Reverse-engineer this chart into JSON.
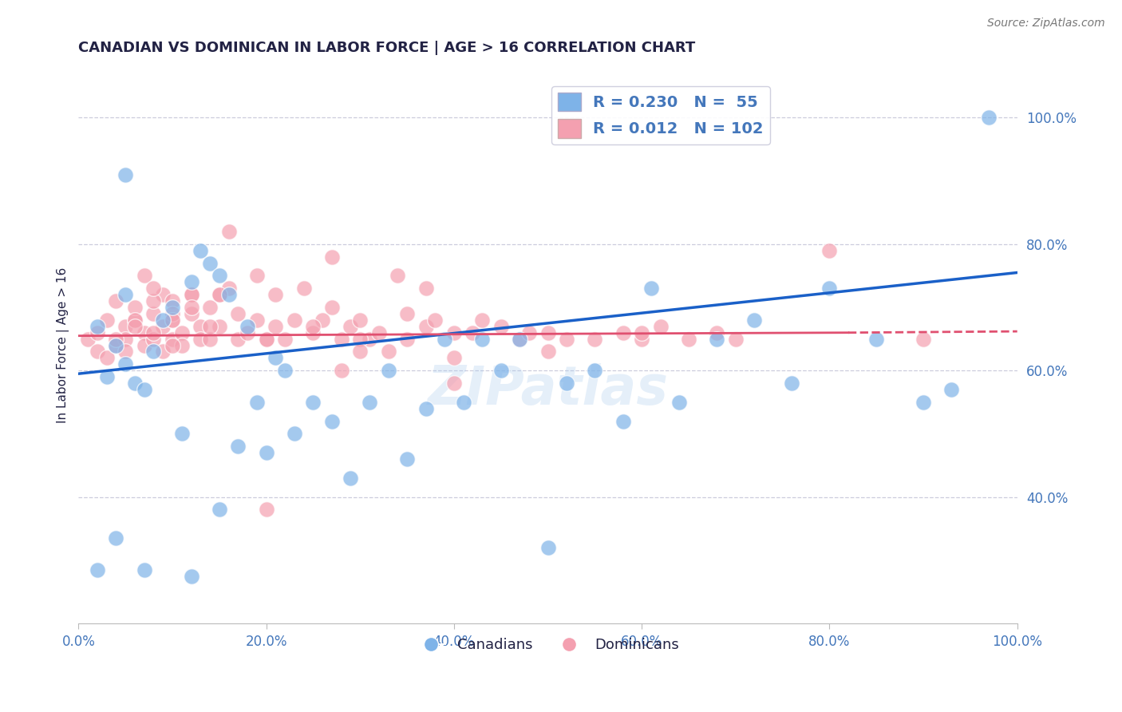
{
  "title": "CANADIAN VS DOMINICAN IN LABOR FORCE | AGE > 16 CORRELATION CHART",
  "source_text": "Source: ZipAtlas.com",
  "ylabel": "In Labor Force | Age > 16",
  "blue_color": "#7EB3E8",
  "pink_color": "#F4A0B0",
  "blue_line_color": "#1A60C8",
  "pink_line_color": "#E05070",
  "title_color": "#222244",
  "axis_label_color": "#4477BB",
  "grid_color": "#CCCCDD",
  "R_blue": 0.23,
  "N_blue": 55,
  "R_pink": 0.012,
  "N_pink": 102,
  "watermark": "ZIPatlas",
  "xlim": [
    0.0,
    1.0
  ],
  "ylim": [
    0.2,
    1.08
  ],
  "blue_line_x0": 0.0,
  "blue_line_y0": 0.595,
  "blue_line_x1": 1.0,
  "blue_line_y1": 0.755,
  "pink_line_x0": 0.0,
  "pink_line_y0": 0.655,
  "pink_line_x1": 0.82,
  "pink_line_y1": 0.66,
  "pink_line_dash_x0": 0.82,
  "pink_line_dash_y0": 0.66,
  "pink_line_dash_x1": 1.0,
  "pink_line_dash_y1": 0.662,
  "canadians_x": [
    0.97,
    0.02,
    0.04,
    0.07,
    0.12,
    0.15,
    0.02,
    0.03,
    0.04,
    0.05,
    0.05,
    0.06,
    0.07,
    0.08,
    0.09,
    0.1,
    0.11,
    0.12,
    0.13,
    0.14,
    0.15,
    0.16,
    0.17,
    0.18,
    0.19,
    0.2,
    0.21,
    0.22,
    0.23,
    0.25,
    0.27,
    0.29,
    0.31,
    0.33,
    0.35,
    0.37,
    0.39,
    0.41,
    0.43,
    0.45,
    0.47,
    0.5,
    0.52,
    0.55,
    0.58,
    0.61,
    0.64,
    0.68,
    0.72,
    0.76,
    0.8,
    0.85,
    0.9,
    0.93,
    0.05
  ],
  "canadians_y": [
    1.0,
    0.285,
    0.335,
    0.285,
    0.275,
    0.38,
    0.67,
    0.59,
    0.64,
    0.61,
    0.72,
    0.58,
    0.57,
    0.63,
    0.68,
    0.7,
    0.5,
    0.74,
    0.79,
    0.77,
    0.75,
    0.72,
    0.48,
    0.67,
    0.55,
    0.47,
    0.62,
    0.6,
    0.5,
    0.55,
    0.52,
    0.43,
    0.55,
    0.6,
    0.46,
    0.54,
    0.65,
    0.55,
    0.65,
    0.6,
    0.65,
    0.32,
    0.58,
    0.6,
    0.52,
    0.73,
    0.55,
    0.65,
    0.68,
    0.58,
    0.73,
    0.65,
    0.55,
    0.57,
    0.91
  ],
  "dominicans_x": [
    0.01,
    0.02,
    0.02,
    0.03,
    0.03,
    0.04,
    0.04,
    0.05,
    0.05,
    0.05,
    0.06,
    0.06,
    0.07,
    0.07,
    0.07,
    0.08,
    0.08,
    0.09,
    0.09,
    0.09,
    0.1,
    0.1,
    0.1,
    0.11,
    0.11,
    0.12,
    0.12,
    0.13,
    0.13,
    0.14,
    0.14,
    0.15,
    0.15,
    0.16,
    0.17,
    0.17,
    0.18,
    0.19,
    0.19,
    0.2,
    0.21,
    0.21,
    0.22,
    0.23,
    0.24,
    0.25,
    0.26,
    0.27,
    0.28,
    0.29,
    0.3,
    0.31,
    0.32,
    0.33,
    0.34,
    0.35,
    0.37,
    0.38,
    0.4,
    0.42,
    0.43,
    0.45,
    0.47,
    0.48,
    0.5,
    0.52,
    0.55,
    0.58,
    0.6,
    0.62,
    0.65,
    0.68,
    0.16,
    0.27,
    0.37,
    0.2,
    0.28,
    0.3,
    0.4,
    0.5,
    0.6,
    0.7,
    0.8,
    0.9,
    0.08,
    0.1,
    0.12,
    0.14,
    0.06,
    0.08,
    0.1,
    0.12,
    0.04,
    0.06,
    0.08,
    0.1,
    0.15,
    0.2,
    0.25,
    0.3,
    0.35,
    0.4
  ],
  "dominicans_y": [
    0.65,
    0.66,
    0.63,
    0.68,
    0.62,
    0.64,
    0.71,
    0.67,
    0.65,
    0.63,
    0.68,
    0.7,
    0.66,
    0.64,
    0.75,
    0.65,
    0.69,
    0.67,
    0.63,
    0.72,
    0.68,
    0.65,
    0.71,
    0.66,
    0.64,
    0.69,
    0.72,
    0.67,
    0.65,
    0.7,
    0.65,
    0.72,
    0.67,
    0.73,
    0.65,
    0.69,
    0.66,
    0.68,
    0.75,
    0.65,
    0.67,
    0.72,
    0.65,
    0.68,
    0.73,
    0.66,
    0.68,
    0.7,
    0.65,
    0.67,
    0.68,
    0.65,
    0.66,
    0.63,
    0.75,
    0.65,
    0.67,
    0.68,
    0.58,
    0.66,
    0.68,
    0.67,
    0.65,
    0.66,
    0.66,
    0.65,
    0.65,
    0.66,
    0.65,
    0.67,
    0.65,
    0.66,
    0.82,
    0.78,
    0.73,
    0.38,
    0.6,
    0.65,
    0.62,
    0.63,
    0.66,
    0.65,
    0.79,
    0.65,
    0.71,
    0.69,
    0.72,
    0.67,
    0.68,
    0.66,
    0.64,
    0.7,
    0.65,
    0.67,
    0.73,
    0.68,
    0.72,
    0.65,
    0.67,
    0.63,
    0.69,
    0.66
  ]
}
